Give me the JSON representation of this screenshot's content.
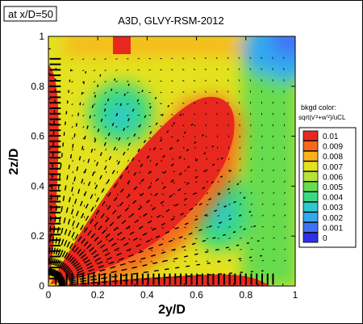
{
  "chart_data": {
    "type": "heatmap",
    "tag": "at x/D=50",
    "title": "A3D, GLVY-RSM-2012",
    "xlabel": "2y/D",
    "ylabel": "2z/D",
    "xlim": [
      0,
      1
    ],
    "ylim": [
      0,
      1
    ],
    "xticks": [
      "0",
      "0.2",
      "0.4",
      "0.6",
      "0.8",
      "1"
    ],
    "yticks": [
      "0",
      "0.2",
      "0.4",
      "0.6",
      "0.8",
      "1"
    ],
    "legend": {
      "title_line1": "bkgd color:",
      "title_line2": "sqrt(v'²+w'²)/uCL",
      "levels": [
        "0.01",
        "0.009",
        "0.008",
        "0.007",
        "0.006",
        "0.005",
        "0.004",
        "0.003",
        "0.002",
        "0.001",
        "0"
      ],
      "colors": [
        "#e8281e",
        "#f46a1a",
        "#f9b21c",
        "#e4e21e",
        "#b6e23a",
        "#66dc4e",
        "#39d97f",
        "#2ec9c9",
        "#33a9ef",
        "#3f73f7",
        "#2e2fe8"
      ]
    },
    "contour_field": {
      "description_levels_used": "value scale 0 to 0.01",
      "regions": [
        {
          "name": "diagonal-high",
          "value": 0.0105
        },
        {
          "name": "corner-high-left",
          "value": 0.0105
        },
        {
          "name": "bottom-high",
          "value": 0.0105
        },
        {
          "name": "upper-low-left",
          "value": 0.003
        },
        {
          "name": "lower-low-right",
          "value": 0.003
        },
        {
          "name": "top-right-low",
          "value": 0.001
        }
      ]
    }
  }
}
